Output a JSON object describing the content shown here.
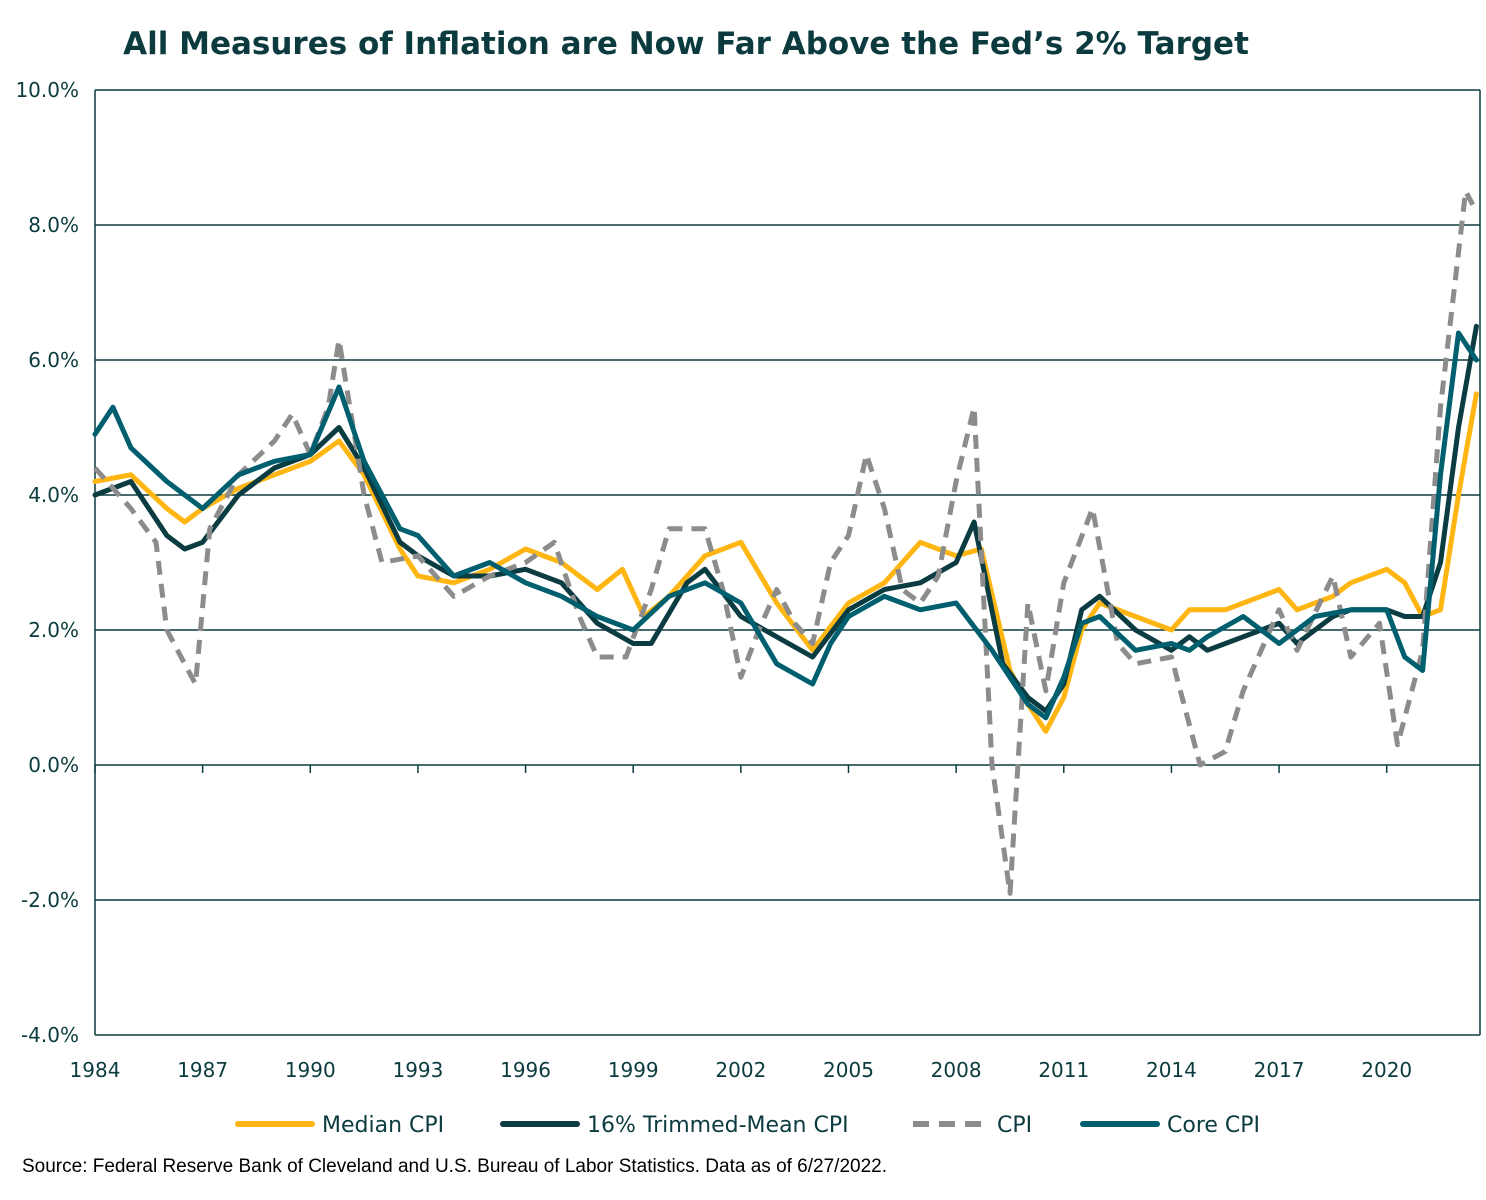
{
  "chart_data": {
    "type": "line",
    "title": "All Measures of Inflation are Now Far Above the Fed’s 2% Target",
    "xlabel": "",
    "ylabel": "",
    "ylim": [
      -4.0,
      10.0
    ],
    "y_ticks": [
      -4.0,
      -2.0,
      0.0,
      2.0,
      4.0,
      6.0,
      8.0,
      10.0
    ],
    "y_tick_labels": [
      "-4.0%",
      "-2.0%",
      "0.0%",
      "2.0%",
      "4.0%",
      "6.0%",
      "8.0%",
      "10.0%"
    ],
    "xlim": [
      1984,
      2022.6
    ],
    "x_ticks": [
      1984,
      1987,
      1990,
      1993,
      1996,
      1999,
      2002,
      2005,
      2008,
      2011,
      2014,
      2017,
      2020
    ],
    "x_tick_labels": [
      "1984",
      "1987",
      "1990",
      "1993",
      "1996",
      "1999",
      "2002",
      "2005",
      "2008",
      "2011",
      "2014",
      "2017",
      "2020"
    ],
    "grid": "horizontal",
    "legend_position": "bottom",
    "series": [
      {
        "name": "Median CPI",
        "color": "#ffb612",
        "style": "solid",
        "points": [
          [
            1984.0,
            4.2
          ],
          [
            1985.0,
            4.3
          ],
          [
            1986.0,
            3.8
          ],
          [
            1986.5,
            3.6
          ],
          [
            1987.0,
            3.8
          ],
          [
            1988.0,
            4.1
          ],
          [
            1989.0,
            4.3
          ],
          [
            1990.0,
            4.5
          ],
          [
            1990.8,
            4.8
          ],
          [
            1991.5,
            4.3
          ],
          [
            1992.5,
            3.2
          ],
          [
            1993.0,
            2.8
          ],
          [
            1994.0,
            2.7
          ],
          [
            1995.0,
            2.9
          ],
          [
            1996.0,
            3.2
          ],
          [
            1997.0,
            3.0
          ],
          [
            1998.0,
            2.6
          ],
          [
            1998.7,
            2.9
          ],
          [
            1999.3,
            2.2
          ],
          [
            2000.0,
            2.5
          ],
          [
            2001.0,
            3.1
          ],
          [
            2002.0,
            3.3
          ],
          [
            2003.0,
            2.4
          ],
          [
            2004.0,
            1.7
          ],
          [
            2005.0,
            2.4
          ],
          [
            2006.0,
            2.7
          ],
          [
            2007.0,
            3.3
          ],
          [
            2008.0,
            3.1
          ],
          [
            2008.7,
            3.2
          ],
          [
            2009.5,
            1.4
          ],
          [
            2010.0,
            0.9
          ],
          [
            2010.5,
            0.5
          ],
          [
            2011.0,
            1.0
          ],
          [
            2011.5,
            2.0
          ],
          [
            2012.0,
            2.4
          ],
          [
            2013.0,
            2.2
          ],
          [
            2014.0,
            2.0
          ],
          [
            2014.5,
            2.3
          ],
          [
            2015.5,
            2.3
          ],
          [
            2016.5,
            2.5
          ],
          [
            2017.0,
            2.6
          ],
          [
            2017.5,
            2.3
          ],
          [
            2018.5,
            2.5
          ],
          [
            2019.0,
            2.7
          ],
          [
            2020.0,
            2.9
          ],
          [
            2020.5,
            2.7
          ],
          [
            2021.0,
            2.2
          ],
          [
            2021.5,
            2.3
          ],
          [
            2022.0,
            4.0
          ],
          [
            2022.5,
            5.5
          ]
        ]
      },
      {
        "name": "16% Trimmed-Mean CPI",
        "color": "#0a3c42",
        "style": "solid",
        "points": [
          [
            1984.0,
            4.0
          ],
          [
            1985.0,
            4.2
          ],
          [
            1986.0,
            3.4
          ],
          [
            1986.5,
            3.2
          ],
          [
            1987.0,
            3.3
          ],
          [
            1988.0,
            4.0
          ],
          [
            1989.0,
            4.4
          ],
          [
            1990.0,
            4.6
          ],
          [
            1990.8,
            5.0
          ],
          [
            1991.5,
            4.4
          ],
          [
            1992.5,
            3.3
          ],
          [
            1993.0,
            3.1
          ],
          [
            1994.0,
            2.8
          ],
          [
            1995.0,
            2.8
          ],
          [
            1996.0,
            2.9
          ],
          [
            1997.0,
            2.7
          ],
          [
            1998.0,
            2.1
          ],
          [
            1999.0,
            1.8
          ],
          [
            1999.5,
            1.8
          ],
          [
            2000.5,
            2.7
          ],
          [
            2001.0,
            2.9
          ],
          [
            2002.0,
            2.2
          ],
          [
            2003.0,
            1.9
          ],
          [
            2004.0,
            1.6
          ],
          [
            2005.0,
            2.3
          ],
          [
            2006.0,
            2.6
          ],
          [
            2007.0,
            2.7
          ],
          [
            2008.0,
            3.0
          ],
          [
            2008.5,
            3.6
          ],
          [
            2009.3,
            1.5
          ],
          [
            2010.0,
            1.0
          ],
          [
            2010.5,
            0.8
          ],
          [
            2011.0,
            1.2
          ],
          [
            2011.5,
            2.3
          ],
          [
            2012.0,
            2.5
          ],
          [
            2013.0,
            2.0
          ],
          [
            2014.0,
            1.7
          ],
          [
            2014.5,
            1.9
          ],
          [
            2015.0,
            1.7
          ],
          [
            2016.0,
            1.9
          ],
          [
            2017.0,
            2.1
          ],
          [
            2017.5,
            1.8
          ],
          [
            2018.5,
            2.2
          ],
          [
            2019.0,
            2.3
          ],
          [
            2020.0,
            2.3
          ],
          [
            2020.5,
            2.2
          ],
          [
            2021.0,
            2.2
          ],
          [
            2021.5,
            3.0
          ],
          [
            2022.0,
            5.0
          ],
          [
            2022.5,
            6.5
          ]
        ]
      },
      {
        "name": "CPI",
        "color": "#8c8c8c",
        "style": "dashed",
        "points": [
          [
            1984.0,
            4.4
          ],
          [
            1985.0,
            3.8
          ],
          [
            1985.7,
            3.3
          ],
          [
            1986.0,
            2.0
          ],
          [
            1986.5,
            1.5
          ],
          [
            1986.8,
            1.2
          ],
          [
            1987.2,
            3.5
          ],
          [
            1988.0,
            4.3
          ],
          [
            1989.0,
            4.8
          ],
          [
            1989.5,
            5.2
          ],
          [
            1990.0,
            4.6
          ],
          [
            1990.5,
            5.3
          ],
          [
            1990.8,
            6.3
          ],
          [
            1991.5,
            4.0
          ],
          [
            1992.0,
            3.0
          ],
          [
            1993.0,
            3.1
          ],
          [
            1994.0,
            2.5
          ],
          [
            1995.0,
            2.8
          ],
          [
            1996.0,
            3.0
          ],
          [
            1996.8,
            3.3
          ],
          [
            1997.5,
            2.2
          ],
          [
            1998.0,
            1.6
          ],
          [
            1998.8,
            1.6
          ],
          [
            1999.5,
            2.6
          ],
          [
            2000.0,
            3.5
          ],
          [
            2001.0,
            3.5
          ],
          [
            2001.5,
            2.6
          ],
          [
            2002.0,
            1.3
          ],
          [
            2002.5,
            2.0
          ],
          [
            2003.0,
            2.6
          ],
          [
            2003.5,
            2.1
          ],
          [
            2004.0,
            1.8
          ],
          [
            2004.5,
            3.0
          ],
          [
            2005.0,
            3.4
          ],
          [
            2005.5,
            4.6
          ],
          [
            2006.0,
            3.8
          ],
          [
            2006.5,
            2.6
          ],
          [
            2007.0,
            2.4
          ],
          [
            2007.5,
            2.8
          ],
          [
            2008.0,
            4.2
          ],
          [
            2008.5,
            5.3
          ],
          [
            2009.0,
            0.0
          ],
          [
            2009.5,
            -1.9
          ],
          [
            2010.0,
            2.4
          ],
          [
            2010.5,
            1.1
          ],
          [
            2011.0,
            2.7
          ],
          [
            2011.8,
            3.8
          ],
          [
            2012.5,
            1.8
          ],
          [
            2013.0,
            1.5
          ],
          [
            2014.0,
            1.6
          ],
          [
            2014.8,
            0.0
          ],
          [
            2015.5,
            0.2
          ],
          [
            2016.0,
            1.1
          ],
          [
            2017.0,
            2.3
          ],
          [
            2017.5,
            1.7
          ],
          [
            2018.5,
            2.8
          ],
          [
            2019.0,
            1.6
          ],
          [
            2019.8,
            2.1
          ],
          [
            2020.3,
            0.3
          ],
          [
            2021.0,
            1.7
          ],
          [
            2021.5,
            5.3
          ],
          [
            2022.2,
            8.5
          ],
          [
            2022.4,
            8.3
          ]
        ]
      },
      {
        "name": "Core CPI",
        "color": "#005f6e",
        "style": "solid",
        "points": [
          [
            1984.0,
            4.9
          ],
          [
            1984.5,
            5.3
          ],
          [
            1985.0,
            4.7
          ],
          [
            1986.0,
            4.2
          ],
          [
            1987.0,
            3.8
          ],
          [
            1988.0,
            4.3
          ],
          [
            1989.0,
            4.5
          ],
          [
            1990.0,
            4.6
          ],
          [
            1990.8,
            5.6
          ],
          [
            1991.5,
            4.5
          ],
          [
            1992.5,
            3.5
          ],
          [
            1993.0,
            3.4
          ],
          [
            1994.0,
            2.8
          ],
          [
            1995.0,
            3.0
          ],
          [
            1996.0,
            2.7
          ],
          [
            1997.0,
            2.5
          ],
          [
            1998.0,
            2.2
          ],
          [
            1999.0,
            2.0
          ],
          [
            2000.0,
            2.5
          ],
          [
            2001.0,
            2.7
          ],
          [
            2002.0,
            2.4
          ],
          [
            2003.0,
            1.5
          ],
          [
            2004.0,
            1.2
          ],
          [
            2004.5,
            1.8
          ],
          [
            2005.0,
            2.2
          ],
          [
            2006.0,
            2.5
          ],
          [
            2007.0,
            2.3
          ],
          [
            2008.0,
            2.4
          ],
          [
            2009.0,
            1.7
          ],
          [
            2010.0,
            0.9
          ],
          [
            2010.5,
            0.7
          ],
          [
            2011.0,
            1.3
          ],
          [
            2011.5,
            2.1
          ],
          [
            2012.0,
            2.2
          ],
          [
            2013.0,
            1.7
          ],
          [
            2014.0,
            1.8
          ],
          [
            2014.5,
            1.7
          ],
          [
            2015.0,
            1.9
          ],
          [
            2016.0,
            2.2
          ],
          [
            2017.0,
            1.8
          ],
          [
            2018.0,
            2.2
          ],
          [
            2019.0,
            2.3
          ],
          [
            2020.0,
            2.3
          ],
          [
            2020.5,
            1.6
          ],
          [
            2021.0,
            1.4
          ],
          [
            2021.5,
            4.3
          ],
          [
            2022.0,
            6.4
          ],
          [
            2022.5,
            6.0
          ]
        ]
      }
    ]
  },
  "source_note": "Source: Federal Reserve Bank of Cleveland and U.S. Bureau of Labor Statistics. Data as of 6/27/2022."
}
